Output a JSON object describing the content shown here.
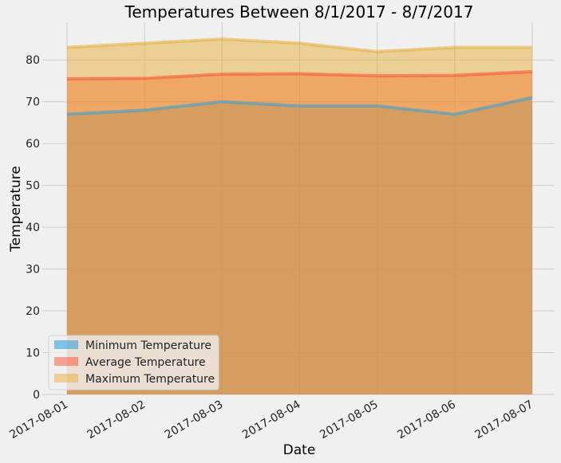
{
  "chart_data": {
    "type": "area",
    "title": "Temperatures Between 8/1/2017 - 8/7/2017",
    "xlabel": "Date",
    "ylabel": "Temperature",
    "categories": [
      "2017-08-01",
      "2017-08-02",
      "2017-08-03",
      "2017-08-04",
      "2017-08-05",
      "2017-08-06",
      "2017-08-07"
    ],
    "ylim": [
      0,
      89
    ],
    "yticks": [
      0,
      10,
      20,
      30,
      40,
      50,
      60,
      70,
      80
    ],
    "stacked": false,
    "grid": true,
    "legend_position": "lower-left",
    "series": [
      {
        "name": "Minimum Temperature",
        "values": [
          67,
          68,
          70,
          69,
          69,
          67,
          71
        ],
        "color": "#30a2da"
      },
      {
        "name": "Average Temperature",
        "values": [
          75.5,
          75.6,
          76.6,
          76.7,
          76.2,
          76.3,
          77.2
        ],
        "color": "#fc4f30"
      },
      {
        "name": "Maximum Temperature",
        "values": [
          83,
          84,
          85,
          84,
          82,
          83,
          83
        ],
        "color": "#e5ae38"
      }
    ]
  }
}
